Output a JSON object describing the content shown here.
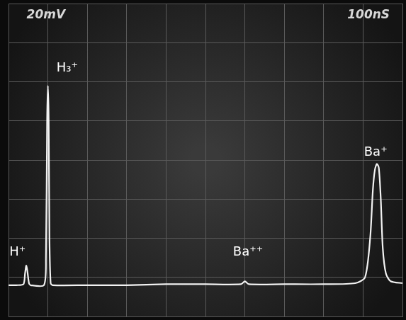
{
  "chart_data": {
    "type": "line",
    "scale_labels": [
      {
        "text": "20mV",
        "x": 95,
        "y": 154
      },
      {
        "text": "100nS",
        "x": 914,
        "y": 154
      }
    ],
    "annotations": [
      {
        "text": "H⁺",
        "x": 23,
        "y": 33
      },
      {
        "text": "H₃⁺",
        "x": 149,
        "y": 127
      },
      {
        "text": "Ba⁺⁺",
        "x": 608,
        "y": 33
      },
      {
        "text": "Ba⁺",
        "x": 932,
        "y": 84
      }
    ],
    "x": [
      0,
      20,
      38,
      42,
      45,
      48,
      52,
      56,
      90,
      95,
      98,
      100,
      102,
      104,
      107,
      112,
      200,
      300,
      400,
      500,
      590,
      600,
      610,
      700,
      800,
      880,
      905,
      918,
      925,
      930,
      935,
      940,
      945,
      950,
      958,
      970,
      1000
    ],
    "series": [
      {
        "color": "#f2f2f2",
        "values": [
          16,
          16,
          16.5,
          22,
          26,
          23,
          17,
          16,
          16,
          30,
          100,
          118,
          100,
          40,
          17,
          16,
          16,
          16,
          16.5,
          16.5,
          16.5,
          18,
          16.5,
          16.5,
          16.5,
          17,
          20,
          40,
          65,
          75,
          78,
          76,
          60,
          35,
          22,
          18,
          17
        ]
      }
    ],
    "xlim": [
      0,
      1000
    ],
    "xticks": [
      0,
      100,
      200,
      300,
      400,
      500,
      600,
      700,
      800,
      900,
      1000
    ],
    "ylim": [
      0,
      160
    ],
    "yticks": [
      0,
      20,
      40,
      60,
      80,
      100,
      120,
      140,
      160
    ],
    "grid": true,
    "tick_labels": false
  }
}
